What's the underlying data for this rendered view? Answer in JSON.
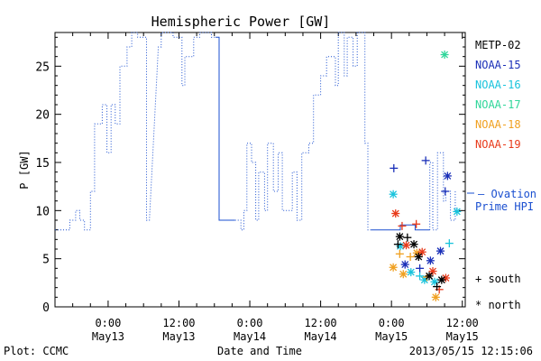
{
  "chart_data": {
    "type": "line",
    "title": "Hemispheric Power [GW]",
    "xlabel": "Date and Time",
    "ylabel": "P [GW]",
    "x_unit": "hours from 2013-05-12 00:00 UT",
    "xlim": [
      15,
      84.5
    ],
    "ylim": [
      0,
      28.5
    ],
    "yticks": [
      0,
      5,
      10,
      15,
      20,
      25
    ],
    "xticks": [
      {
        "x": 24,
        "label1": "0:00",
        "label2": "May13"
      },
      {
        "x": 36,
        "label1": "12:00",
        "label2": "May13"
      },
      {
        "x": 48,
        "label1": "0:00",
        "label2": "May14"
      },
      {
        "x": 60,
        "label1": "12:00",
        "label2": "May14"
      },
      {
        "x": 72,
        "label1": "0:00",
        "label2": "May15"
      },
      {
        "x": 84,
        "label1": "12:00",
        "label2": "May15"
      }
    ],
    "series": [
      {
        "name": "Ovation Prime HPI",
        "color": "#1a4fd0",
        "segments": [
          {
            "style": "dotted",
            "points": [
              [
                15,
                8
              ],
              [
                17.5,
                8
              ],
              [
                17.5,
                9
              ],
              [
                18.5,
                9
              ],
              [
                18.5,
                10
              ],
              [
                19.2,
                10
              ],
              [
                19.2,
                9
              ],
              [
                20,
                9
              ],
              [
                20,
                8
              ],
              [
                21,
                8
              ],
              [
                21,
                12
              ],
              [
                21.7,
                12
              ],
              [
                21.7,
                19
              ],
              [
                23,
                19
              ],
              [
                23,
                21
              ],
              [
                23.8,
                21
              ],
              [
                23.8,
                16
              ],
              [
                24.5,
                16
              ],
              [
                24.5,
                21
              ],
              [
                25.2,
                21
              ],
              [
                25.2,
                19
              ],
              [
                26,
                19
              ],
              [
                26,
                25
              ],
              [
                27.2,
                25
              ],
              [
                27.2,
                27
              ],
              [
                28,
                27
              ],
              [
                28,
                28.5
              ],
              [
                29,
                28.5
              ],
              [
                29,
                28
              ],
              [
                30.5,
                28
              ],
              [
                30.5,
                9
              ],
              [
                31,
                9
              ],
              [
                32.5,
                27
              ],
              [
                33,
                27
              ],
              [
                33,
                28.5
              ],
              [
                35,
                28.5
              ],
              [
                35,
                28
              ],
              [
                36.5,
                28
              ],
              [
                36.5,
                23
              ],
              [
                37,
                23
              ],
              [
                37,
                26
              ],
              [
                38.5,
                26
              ],
              [
                38.5,
                28
              ],
              [
                39.5,
                28
              ],
              [
                39.5,
                28.5
              ],
              [
                41.5,
                28.5
              ],
              [
                41.5,
                28
              ],
              [
                42.2,
                28
              ]
            ]
          },
          {
            "style": "solid",
            "points": [
              [
                42.2,
                28
              ],
              [
                42.8,
                28
              ],
              [
                42.8,
                9
              ],
              [
                45.5,
                9
              ]
            ]
          },
          {
            "style": "dotted",
            "points": [
              [
                45.5,
                9
              ],
              [
                46.5,
                9
              ],
              [
                46.5,
                8
              ],
              [
                47,
                8
              ],
              [
                47,
                10
              ],
              [
                47.5,
                10
              ],
              [
                47.5,
                17
              ],
              [
                48.3,
                17
              ],
              [
                48.3,
                15
              ],
              [
                49,
                15
              ],
              [
                49,
                9
              ],
              [
                49.5,
                9
              ],
              [
                49.5,
                14
              ],
              [
                50.5,
                14
              ],
              [
                50.5,
                10
              ],
              [
                51,
                10
              ],
              [
                51,
                17
              ],
              [
                52,
                17
              ],
              [
                52,
                12
              ],
              [
                52.8,
                12
              ],
              [
                52.8,
                16
              ],
              [
                53.5,
                16
              ],
              [
                53.5,
                10
              ],
              [
                54.5,
                10
              ],
              [
                54.5,
                10
              ],
              [
                55.2,
                10
              ],
              [
                55.2,
                14
              ],
              [
                56,
                14
              ],
              [
                56,
                9
              ],
              [
                56.8,
                9
              ],
              [
                56.8,
                16
              ],
              [
                58,
                16
              ],
              [
                58,
                17
              ],
              [
                58.8,
                17
              ],
              [
                58.8,
                22
              ],
              [
                60,
                22
              ],
              [
                60,
                24
              ],
              [
                61,
                24
              ],
              [
                61,
                26
              ],
              [
                62.5,
                26
              ],
              [
                62.5,
                23
              ],
              [
                63,
                23
              ],
              [
                63,
                28.5
              ],
              [
                64,
                28.5
              ],
              [
                64,
                24
              ],
              [
                64.5,
                24
              ],
              [
                64.5,
                28
              ],
              [
                65.5,
                28
              ],
              [
                65.5,
                25
              ],
              [
                66.2,
                25
              ],
              [
                66.2,
                28.5
              ],
              [
                67.5,
                28.5
              ],
              [
                67.5,
                17
              ],
              [
                68,
                17
              ],
              [
                68,
                8
              ],
              [
                68.5,
                8
              ]
            ]
          },
          {
            "style": "solid",
            "points": [
              [
                68.5,
                8
              ],
              [
                73.5,
                8
              ],
              [
                73.5,
                8.5
              ],
              [
                76,
                8.5
              ],
              [
                76,
                8
              ],
              [
                78.5,
                8
              ]
            ]
          },
          {
            "style": "dotted",
            "points": [
              [
                78.5,
                8
              ],
              [
                78.5,
                15
              ],
              [
                79,
                15
              ],
              [
                79,
                8
              ],
              [
                79.8,
                8
              ],
              [
                79.8,
                16
              ],
              [
                80.8,
                16
              ],
              [
                80.8,
                11
              ],
              [
                81.2,
                11
              ],
              [
                81.2,
                12
              ],
              [
                82,
                12
              ],
              [
                82,
                9
              ],
              [
                82.8,
                9
              ],
              [
                82.8,
                12
              ]
            ]
          }
        ]
      },
      {
        "name": "NOAA-15",
        "color": "#1a2fb8",
        "points": [
          {
            "x": 72.4,
            "y": 14.4,
            "marker": "+"
          },
          {
            "x": 77.8,
            "y": 15.2,
            "marker": "+"
          },
          {
            "x": 81.1,
            "y": 12.0,
            "marker": "+"
          },
          {
            "x": 81.5,
            "y": 13.6,
            "marker": "*"
          },
          {
            "x": 80.3,
            "y": 5.8,
            "marker": "*"
          },
          {
            "x": 74.3,
            "y": 4.4,
            "marker": "*"
          },
          {
            "x": 76.8,
            "y": 4.0,
            "marker": "+"
          },
          {
            "x": 78.6,
            "y": 4.8,
            "marker": "*"
          }
        ]
      },
      {
        "name": "NOAA-16",
        "color": "#18c3dc",
        "points": [
          {
            "x": 72.3,
            "y": 11.7,
            "marker": "*"
          },
          {
            "x": 73.5,
            "y": 6.3,
            "marker": "*"
          },
          {
            "x": 75.3,
            "y": 3.6,
            "marker": "*"
          },
          {
            "x": 76.8,
            "y": 3.2,
            "marker": "+"
          },
          {
            "x": 77.6,
            "y": 2.8,
            "marker": "*"
          },
          {
            "x": 79.3,
            "y": 2.6,
            "marker": "*"
          },
          {
            "x": 81.8,
            "y": 6.6,
            "marker": "+"
          },
          {
            "x": 83.1,
            "y": 9.9,
            "marker": "*"
          }
        ]
      },
      {
        "name": "NOAA-17",
        "color": "#2fd69a",
        "points": [
          {
            "x": 81.0,
            "y": 26.2,
            "marker": "*"
          }
        ]
      },
      {
        "name": "NOAA-18",
        "color": "#f0a020",
        "points": [
          {
            "x": 72.3,
            "y": 4.1,
            "marker": "*"
          },
          {
            "x": 73.4,
            "y": 5.5,
            "marker": "+"
          },
          {
            "x": 74.0,
            "y": 3.4,
            "marker": "*"
          },
          {
            "x": 75.2,
            "y": 5.2,
            "marker": "+"
          },
          {
            "x": 76.3,
            "y": 5.6,
            "marker": "*"
          },
          {
            "x": 78.0,
            "y": 3.1,
            "marker": "+"
          },
          {
            "x": 79.5,
            "y": 1.0,
            "marker": "*"
          }
        ]
      },
      {
        "name": "NOAA-19",
        "color": "#e83a1a",
        "points": [
          {
            "x": 72.7,
            "y": 9.7,
            "marker": "*"
          },
          {
            "x": 73.8,
            "y": 8.4,
            "marker": "+"
          },
          {
            "x": 74.5,
            "y": 6.4,
            "marker": "*"
          },
          {
            "x": 76.2,
            "y": 8.6,
            "marker": "+"
          },
          {
            "x": 77.2,
            "y": 5.7,
            "marker": "*"
          },
          {
            "x": 79.0,
            "y": 3.7,
            "marker": "*"
          },
          {
            "x": 80.1,
            "y": 1.8,
            "marker": "+"
          },
          {
            "x": 81.2,
            "y": 3.0,
            "marker": "*"
          }
        ]
      },
      {
        "name": "METP-02",
        "color": "#000000",
        "points": [
          {
            "x": 73.4,
            "y": 7.3,
            "marker": "*"
          },
          {
            "x": 73.1,
            "y": 6.5,
            "marker": "+"
          },
          {
            "x": 74.7,
            "y": 7.2,
            "marker": "+"
          },
          {
            "x": 75.8,
            "y": 6.5,
            "marker": "*"
          },
          {
            "x": 76.6,
            "y": 5.2,
            "marker": "*"
          },
          {
            "x": 78.4,
            "y": 3.2,
            "marker": "*"
          },
          {
            "x": 79.7,
            "y": 2.1,
            "marker": "+"
          },
          {
            "x": 80.5,
            "y": 2.8,
            "marker": "*"
          }
        ]
      }
    ],
    "legend": {
      "placement": "right",
      "satellites": [
        "METP-02",
        "NOAA-15",
        "NOAA-16",
        "NOAA-17",
        "NOAA-18",
        "NOAA-19"
      ],
      "model_label_1": "— Ovation",
      "model_label_2": "Prime HPI",
      "marker_south": "+ south",
      "marker_north": "* north"
    },
    "grid": false
  },
  "footer": {
    "left": "Plot: CCMC",
    "right": "2013/05/15 12:15:06"
  },
  "colors": {
    "axis": "#000000",
    "model": "#1a4fd0",
    "background": "#ffffff"
  }
}
